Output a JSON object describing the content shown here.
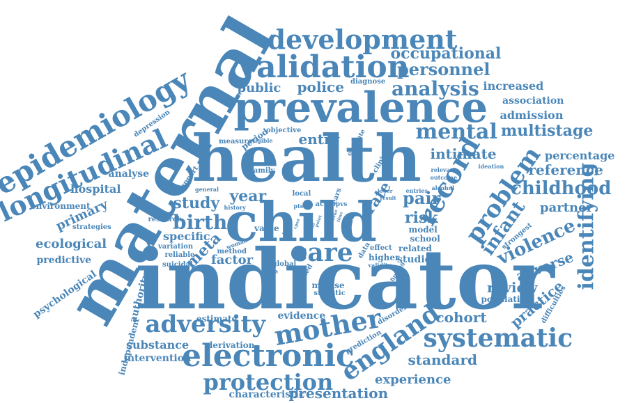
{
  "color": "#4a86b8",
  "words": [
    {
      "text": "maternal"
    },
    {
      "text": "indicator"
    },
    {
      "text": "health"
    },
    {
      "text": "child"
    },
    {
      "text": "prevalence"
    },
    {
      "text": "validation"
    },
    {
      "text": "development"
    },
    {
      "text": "epidemiology"
    },
    {
      "text": "longitudinal"
    },
    {
      "text": "electronic"
    },
    {
      "text": "adversity"
    },
    {
      "text": "mother"
    },
    {
      "text": "systematic"
    },
    {
      "text": "england"
    },
    {
      "text": "protection"
    },
    {
      "text": "identifying"
    },
    {
      "text": "problem"
    },
    {
      "text": "record"
    },
    {
      "text": "care"
    },
    {
      "text": "analysis"
    },
    {
      "text": "mental"
    },
    {
      "text": "childhood"
    },
    {
      "text": "violence"
    },
    {
      "text": "infant"
    },
    {
      "text": "occupational"
    },
    {
      "text": "personnel"
    },
    {
      "text": "multistage"
    },
    {
      "text": "reference"
    },
    {
      "text": "year"
    },
    {
      "text": "birth"
    },
    {
      "text": "study"
    },
    {
      "text": "pair"
    },
    {
      "text": "risk"
    },
    {
      "text": "entry"
    },
    {
      "text": "intimate"
    },
    {
      "text": "public"
    },
    {
      "text": "police"
    },
    {
      "text": "standard"
    },
    {
      "text": "experience"
    },
    {
      "text": "presentation"
    },
    {
      "text": "characteristic"
    },
    {
      "text": "cohort"
    },
    {
      "text": "evidence"
    },
    {
      "text": "practice"
    },
    {
      "text": "adverse"
    },
    {
      "text": "review"
    },
    {
      "text": "partner"
    },
    {
      "text": "percentage"
    },
    {
      "text": "admission"
    },
    {
      "text": "association"
    },
    {
      "text": "increased"
    },
    {
      "text": "factor"
    },
    {
      "text": "specific"
    },
    {
      "text": "meta"
    },
    {
      "text": "rate"
    },
    {
      "text": "hospital"
    },
    {
      "text": "primary"
    },
    {
      "text": "ecological"
    },
    {
      "text": "predictive"
    },
    {
      "text": "analyse"
    },
    {
      "text": "environment"
    },
    {
      "text": "strategies"
    },
    {
      "text": "substance"
    },
    {
      "text": "intervention"
    },
    {
      "text": "independent"
    },
    {
      "text": "psychological"
    },
    {
      "text": "authority"
    },
    {
      "text": "estimate"
    },
    {
      "text": "derivation"
    },
    {
      "text": "prediction"
    },
    {
      "text": "population"
    },
    {
      "text": "difficulties"
    },
    {
      "text": "strongest"
    },
    {
      "text": "studies"
    },
    {
      "text": "related"
    },
    {
      "text": "school"
    },
    {
      "text": "model"
    },
    {
      "text": "depression"
    },
    {
      "text": "support"
    },
    {
      "text": "research"
    },
    {
      "text": "period"
    },
    {
      "text": "measure"
    },
    {
      "text": "objective"
    },
    {
      "text": "eligible"
    },
    {
      "text": "evaluate"
    },
    {
      "text": "clinical"
    },
    {
      "text": "diagnose"
    },
    {
      "text": "ideation"
    },
    {
      "text": "relevant"
    },
    {
      "text": "outcome"
    },
    {
      "text": "alcohol"
    },
    {
      "text": "entries"
    },
    {
      "text": "lower"
    },
    {
      "text": "result"
    },
    {
      "text": "family"
    },
    {
      "text": "general"
    },
    {
      "text": "history"
    },
    {
      "text": "local"
    },
    {
      "text": "ptsd"
    },
    {
      "text": "ace"
    },
    {
      "text": "ppvs"
    },
    {
      "text": "value"
    },
    {
      "text": "linked"
    },
    {
      "text": "data"
    },
    {
      "text": "effect"
    },
    {
      "text": "higher"
    },
    {
      "text": "validity"
    },
    {
      "text": "global"
    },
    {
      "text": "coded"
    },
    {
      "text": "misuse"
    },
    {
      "text": "statistic"
    },
    {
      "text": "finding"
    },
    {
      "text": "disorder"
    },
    {
      "text": "coping"
    },
    {
      "text": "suicidal"
    },
    {
      "text": "variation"
    },
    {
      "text": "reliable"
    },
    {
      "text": "method"
    },
    {
      "text": "woman"
    },
    {
      "text": "ears"
    },
    {
      "text": "cpsa"
    },
    {
      "text": "level"
    },
    {
      "text": "point"
    },
    {
      "text": "city"
    },
    {
      "text": "social"
    },
    {
      "text": "issue"
    },
    {
      "text": "time"
    }
  ]
}
